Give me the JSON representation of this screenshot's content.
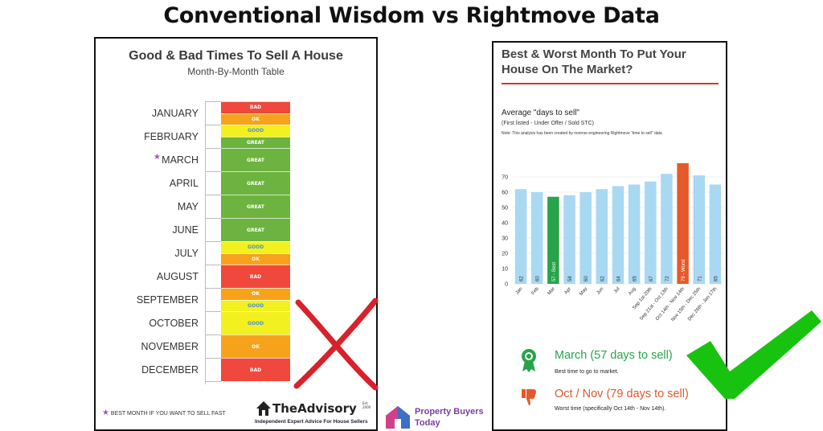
{
  "main_title": "Conventional Wisdom vs Rightmove Data",
  "left": {
    "title": "Good & Bad Times To Sell A House",
    "subtitle": "Month-By-Month Table",
    "months": [
      {
        "name": "JANUARY",
        "ratings": [
          "BAD",
          "OK"
        ]
      },
      {
        "name": "FEBRUARY",
        "ratings": [
          "GOOD",
          "GREAT"
        ]
      },
      {
        "name": "MARCH",
        "ratings": [
          "GREAT"
        ]
      },
      {
        "name": "APRIL",
        "ratings": [
          "GREAT"
        ]
      },
      {
        "name": "MAY",
        "ratings": [
          "GREAT"
        ]
      },
      {
        "name": "JUNE",
        "ratings": [
          "GREAT"
        ]
      },
      {
        "name": "JULY",
        "ratings": [
          "GOOD",
          "OK"
        ]
      },
      {
        "name": "AUGUST",
        "ratings": [
          "BAD"
        ]
      },
      {
        "name": "SEPTEMBER",
        "ratings": [
          "OK",
          "GOOD"
        ]
      },
      {
        "name": "OCTOBER",
        "ratings": [
          "GOOD"
        ]
      },
      {
        "name": "NOVEMBER",
        "ratings": [
          "OK"
        ]
      },
      {
        "name": "DECEMBER",
        "ratings": [
          "BAD"
        ]
      }
    ],
    "rating_colors": {
      "BAD": "#f0483c",
      "OK": "#f7a21b",
      "GOOD": "#f3f01f",
      "GREAT": "#6db33f"
    },
    "rating_text_colors": {
      "BAD": "#ffffff",
      "OK": "#ffffff",
      "GOOD": "#4f8fd0",
      "GREAT": "#ffffff"
    },
    "star_note": "BEST MONTH IF YOU WANT TO SELL FAST",
    "advisory_name": "TheAdvisory",
    "advisory_est": "Est. 2000",
    "advisory_tagline": "Independent Expert Advice For House Sellers"
  },
  "right": {
    "title": "Best & Worst Month To Put Your House On The Market?",
    "chart_title": "Average \"days to sell\"",
    "chart_subtitle": "(First listed - Under Offer / Sold STC)",
    "chart_note": "Note: This analysis has been created by reverse engineering Rightmove \"time to sell\" data",
    "best_summary": "March (57 days to sell)",
    "best_caption": "Best time to go to market.",
    "worst_summary": "Oct / Nov (79 days to sell)",
    "worst_caption": "Worst time (specifically Oct 14th - Nov 14th)."
  },
  "chart_data": {
    "type": "bar",
    "title": "Average \"days to sell\"",
    "categories": [
      "Jan",
      "Feb",
      "Mar",
      "Apr",
      "May",
      "Jun",
      "Jul",
      "Aug",
      "Sep 1st-20th",
      "Sep 21st - Oct 13th",
      "Oct 14th - Nov 14th",
      "Nov 15th - Dec 25th",
      "Dec 26th - Jan 17th"
    ],
    "values": [
      62,
      60,
      57,
      58,
      60,
      62,
      64,
      65,
      67,
      72,
      79,
      71,
      65
    ],
    "bar_labels": [
      "62",
      "60",
      "57 - Best",
      "58",
      "60",
      "62",
      "64",
      "65",
      "67",
      "72",
      "79 - Worst",
      "71",
      "65"
    ],
    "yticks": [
      0,
      10,
      20,
      30,
      40,
      50,
      60,
      70
    ],
    "ylim": [
      0,
      80
    ],
    "colors": {
      "default": "#a9d8f2",
      "best": "#27a44a",
      "worst": "#e65a2a"
    },
    "best_index": 2,
    "worst_index": 10
  },
  "brand": {
    "name_line1": "Property Buyers",
    "name_line2": "Today"
  }
}
